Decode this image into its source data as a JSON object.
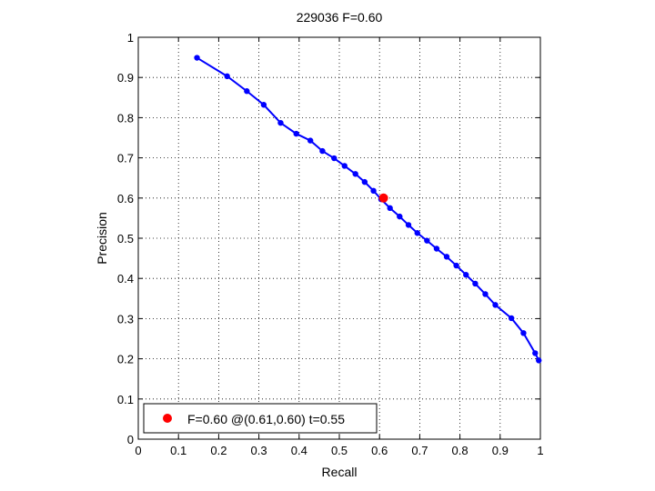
{
  "chart_data": {
    "type": "line",
    "title": "229036 F=0.60",
    "xlabel": "Recall",
    "ylabel": "Precision",
    "xlim": [
      0,
      1
    ],
    "ylim": [
      0,
      1
    ],
    "grid": true,
    "xticks": [
      "0",
      "0.1",
      "0.2",
      "0.3",
      "0.4",
      "0.5",
      "0.6",
      "0.7",
      "0.8",
      "0.9",
      "1"
    ],
    "yticks": [
      "0",
      "0.1",
      "0.2",
      "0.3",
      "0.4",
      "0.5",
      "0.6",
      "0.7",
      "0.8",
      "0.9",
      "1"
    ],
    "series": [
      {
        "color": "#0000ff",
        "x": [
          0.146,
          0.221,
          0.27,
          0.312,
          0.354,
          0.393,
          0.428,
          0.458,
          0.487,
          0.513,
          0.54,
          0.563,
          0.585,
          0.604,
          0.626,
          0.65,
          0.672,
          0.694,
          0.718,
          0.742,
          0.767,
          0.791,
          0.815,
          0.838,
          0.863,
          0.888,
          0.928,
          0.958,
          0.987,
          0.996
        ],
        "y": [
          0.949,
          0.903,
          0.866,
          0.832,
          0.787,
          0.76,
          0.743,
          0.717,
          0.699,
          0.68,
          0.66,
          0.64,
          0.618,
          0.597,
          0.575,
          0.554,
          0.533,
          0.513,
          0.494,
          0.474,
          0.454,
          0.432,
          0.409,
          0.387,
          0.361,
          0.334,
          0.301,
          0.264,
          0.214,
          0.196
        ]
      }
    ],
    "highlight": {
      "x": 0.61,
      "y": 0.6,
      "color": "#ff0000"
    },
    "legend": {
      "label": "F=0.60 @(0.61,0.60) t=0.55",
      "position": "bottom-left"
    }
  }
}
